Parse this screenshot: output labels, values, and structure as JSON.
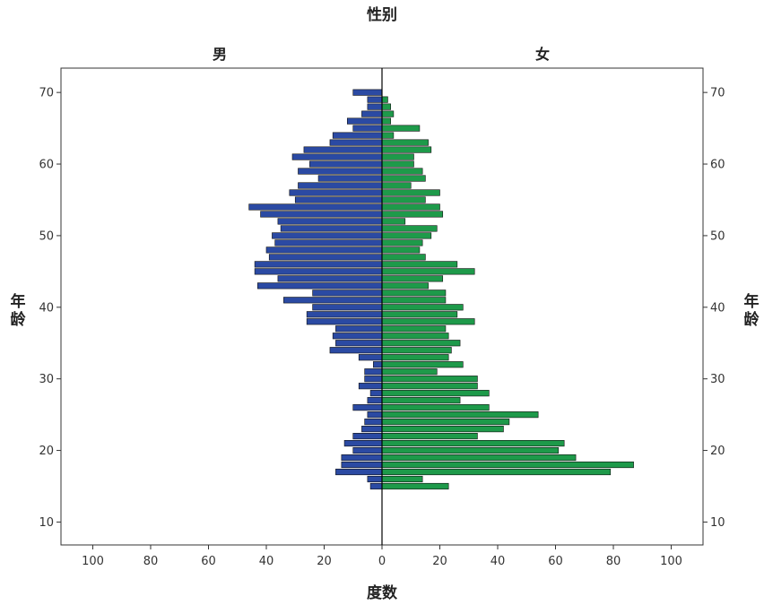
{
  "chart_data": {
    "type": "bar",
    "orientation": "horizontal",
    "title": "性别",
    "xlabel": "度数",
    "ylabel": "年龄",
    "panels": [
      "男",
      "女"
    ],
    "xticks": [
      100,
      80,
      60,
      40,
      20,
      0,
      20,
      40,
      60,
      80,
      100
    ],
    "yticks": [
      10,
      20,
      30,
      40,
      50,
      60,
      70
    ],
    "xlim": [
      -111,
      111
    ],
    "ylim": [
      6.8,
      73.4
    ],
    "ages": [
      15,
      16,
      17,
      18,
      19,
      20,
      21,
      22,
      23,
      24,
      25,
      26,
      27,
      28,
      29,
      30,
      31,
      32,
      33,
      34,
      35,
      36,
      37,
      38,
      39,
      40,
      41,
      42,
      43,
      44,
      45,
      46,
      47,
      48,
      49,
      50,
      51,
      52,
      53,
      54,
      55,
      56,
      57,
      58,
      59,
      60,
      61,
      62,
      63,
      64,
      65,
      66,
      67,
      68,
      69,
      70
    ],
    "series": [
      {
        "name": "男",
        "color": "#2b4aa3",
        "values": [
          4,
          5,
          16,
          14,
          14,
          10,
          13,
          10,
          7,
          6,
          5,
          10,
          5,
          4,
          8,
          6,
          6,
          3,
          8,
          18,
          16,
          17,
          16,
          26,
          26,
          24,
          34,
          24,
          43,
          36,
          44,
          44,
          39,
          40,
          37,
          38,
          35,
          36,
          42,
          46,
          30,
          32,
          29,
          22,
          29,
          25,
          31,
          27,
          18,
          17,
          10,
          12,
          7,
          5,
          5,
          10
        ]
      },
      {
        "name": "女",
        "color": "#1e9a4a",
        "values": [
          23,
          14,
          79,
          87,
          67,
          61,
          63,
          33,
          42,
          44,
          54,
          37,
          27,
          37,
          33,
          33,
          19,
          28,
          23,
          24,
          27,
          23,
          22,
          32,
          26,
          28,
          22,
          22,
          16,
          21,
          32,
          26,
          15,
          13,
          14,
          17,
          19,
          8,
          21,
          20,
          15,
          20,
          10,
          15,
          14,
          11,
          11,
          17,
          16,
          4,
          13,
          3,
          4,
          3,
          2,
          0
        ]
      }
    ]
  }
}
